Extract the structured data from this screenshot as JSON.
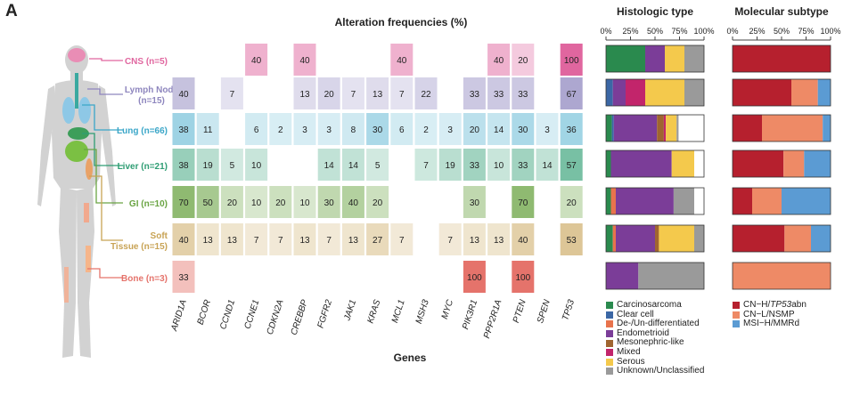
{
  "panel_letter": "A",
  "colors": {
    "CNS": "#e0669f",
    "Lymph Node": "#8e86be",
    "Lung": "#3aa6c8",
    "Liver": "#2e9d73",
    "GI": "#6aa443",
    "Soft Tissue": "#c8a355",
    "Bone": "#e5736b"
  },
  "chart_data": [
    {
      "type": "heatmap",
      "title": "Alteration frequencies (%)",
      "xlabel": "Genes",
      "ylabel": "",
      "genes": [
        "ARID1A",
        "BCOR",
        "CCND1",
        "CCNE1",
        "CDKN2A",
        "CREBBP",
        "FGFR2",
        "JAK1",
        "KRAS",
        "MCL1",
        "MSH3",
        "MYC",
        "PIK3R1",
        "PPP2R1A",
        "PTEN",
        "SPEN",
        "TP53"
      ],
      "sites": [
        {
          "name": "CNS",
          "label": "CNS (n=5)",
          "values": [
            null,
            null,
            null,
            40,
            null,
            40,
            null,
            null,
            null,
            40,
            null,
            null,
            null,
            40,
            20,
            null,
            100
          ]
        },
        {
          "name": "Lymph Node",
          "label": "Lymph Node (n=15)",
          "values": [
            40,
            null,
            7,
            null,
            null,
            13,
            20,
            7,
            13,
            7,
            22,
            null,
            33,
            33,
            33,
            null,
            67
          ]
        },
        {
          "name": "Lung",
          "label": "Lung (n=66)",
          "values": [
            38,
            11,
            null,
            6,
            2,
            3,
            3,
            8,
            30,
            6,
            2,
            3,
            20,
            14,
            30,
            3,
            36
          ]
        },
        {
          "name": "Liver",
          "label": "Liver (n=21)",
          "values": [
            38,
            19,
            5,
            10,
            null,
            null,
            14,
            14,
            5,
            null,
            7,
            19,
            33,
            10,
            33,
            14,
            57
          ]
        },
        {
          "name": "GI",
          "label": "GI (n=10)",
          "values": [
            70,
            50,
            20,
            10,
            20,
            10,
            30,
            40,
            20,
            null,
            null,
            null,
            30,
            null,
            70,
            null,
            20
          ]
        },
        {
          "name": "Soft Tissue",
          "label": "Soft Tissue (n=15)",
          "values": [
            40,
            13,
            13,
            7,
            7,
            13,
            7,
            13,
            27,
            7,
            null,
            7,
            13,
            13,
            40,
            null,
            53
          ]
        },
        {
          "name": "Bone",
          "label": "Bone (n=3)",
          "values": [
            33,
            null,
            null,
            null,
            null,
            null,
            null,
            null,
            null,
            null,
            null,
            null,
            100,
            null,
            100,
            null,
            null
          ]
        }
      ]
    },
    {
      "type": "bar",
      "orientation": "horizontal-stacked-100",
      "title": "Histologic type",
      "xlim": [
        0,
        100
      ],
      "ticks": [
        "0%",
        "25%",
        "50%",
        "75%",
        "100%"
      ],
      "categories": [
        "CNS",
        "Lymph Node",
        "Lung",
        "Liver",
        "GI",
        "Soft Tissue",
        "Bone"
      ],
      "series": [
        {
          "name": "Carcinosarcoma",
          "color": "#2a8a4e",
          "values": [
            40,
            0,
            6,
            5,
            5,
            7,
            0
          ]
        },
        {
          "name": "Clear cell",
          "color": "#3b67a5",
          "values": [
            0,
            7,
            2,
            0,
            0,
            0,
            0
          ]
        },
        {
          "name": "De-/Un-differentiated",
          "color": "#e8734c",
          "values": [
            0,
            0,
            0,
            0,
            5,
            3,
            0
          ]
        },
        {
          "name": "Endometrioid",
          "color": "#7b3d98",
          "values": [
            20,
            13,
            44,
            62,
            59,
            40,
            33
          ]
        },
        {
          "name": "Mesonephric-like",
          "color": "#a06530",
          "values": [
            0,
            0,
            7,
            0,
            0,
            4,
            0
          ]
        },
        {
          "name": "Mixed",
          "color": "#c2256b",
          "values": [
            0,
            20,
            2,
            0,
            0,
            0,
            0
          ]
        },
        {
          "name": "Serous",
          "color": "#f4c94c",
          "values": [
            20,
            40,
            11,
            23,
            0,
            36,
            0
          ]
        },
        {
          "name": "Unknown/Unclassified",
          "color": "#9a9a9a",
          "values": [
            20,
            20,
            2,
            0,
            21,
            10,
            67
          ]
        }
      ]
    },
    {
      "type": "bar",
      "orientation": "horizontal-stacked-100",
      "title": "Molecular subtype",
      "xlim": [
        0,
        100
      ],
      "ticks": [
        "0%",
        "25%",
        "50%",
        "75%",
        "100%"
      ],
      "categories": [
        "CNS",
        "Lymph Node",
        "Lung",
        "Liver",
        "GI",
        "Soft Tissue",
        "Bone"
      ],
      "series": [
        {
          "name": "CN-H/TP53abn",
          "legend_html": "CN−H/<i>TP53</i>abn",
          "color": "#b6202e",
          "values": [
            100,
            60,
            30,
            52,
            20,
            53,
            0
          ]
        },
        {
          "name": "CN-L/NSMP",
          "legend_html": "CN−L/NSMP",
          "color": "#ee8a66",
          "values": [
            0,
            27,
            62,
            21,
            30,
            27,
            100
          ]
        },
        {
          "name": "MSI-H/MMRd",
          "legend_html": "MSI−H/MMRd",
          "color": "#5b9bd3",
          "values": [
            0,
            13,
            8,
            27,
            50,
            20,
            0
          ]
        }
      ]
    }
  ]
}
